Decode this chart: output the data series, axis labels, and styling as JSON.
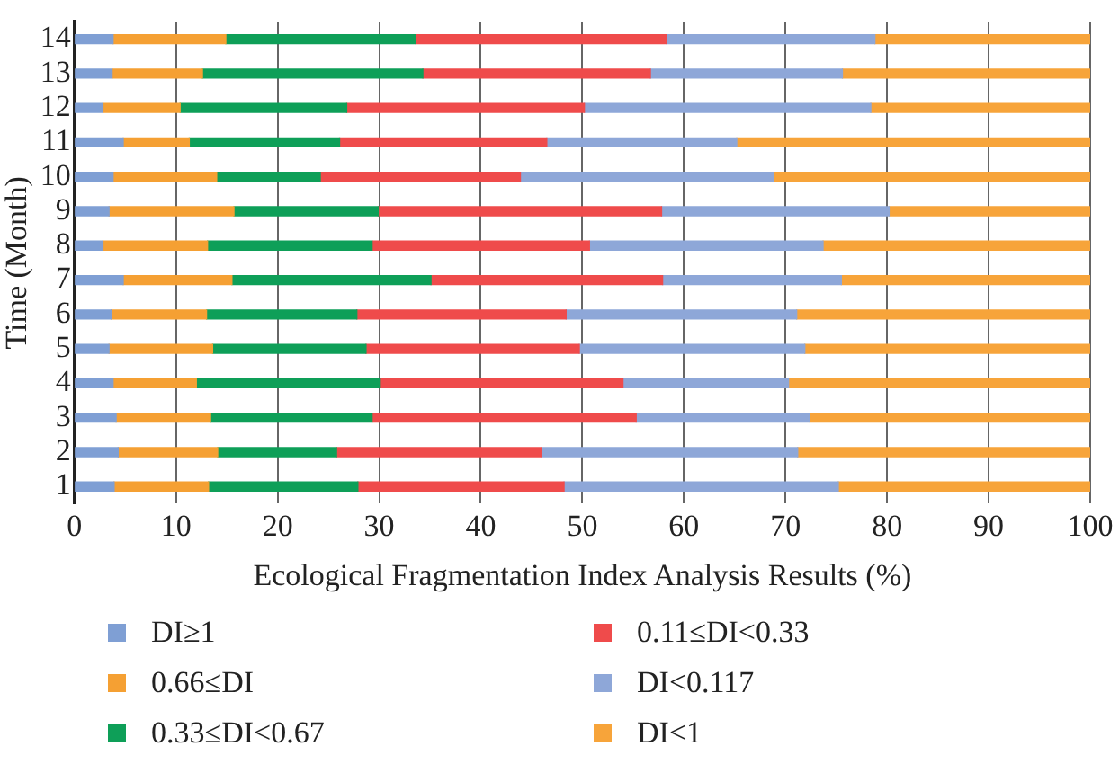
{
  "chart_data": {
    "type": "bar",
    "orientation": "horizontal",
    "stacked": true,
    "xlabel": "Ecological Fragmentation Index Analysis Results (%)",
    "ylabel": "Time (Month)",
    "categories": [
      "14",
      "13",
      "12",
      "11",
      "10",
      "9",
      "8",
      "7",
      "6",
      "5",
      "4",
      "3",
      "2",
      "1"
    ],
    "xlim": [
      0,
      100
    ],
    "xticks": [
      0,
      10,
      20,
      30,
      40,
      50,
      60,
      70,
      80,
      90,
      100
    ],
    "grid": "x",
    "legend": "bottom",
    "series": [
      {
        "name": "DI≥1",
        "color": "#7f9fd4",
        "values": [
          3.8,
          3.7,
          2.8,
          4.8,
          3.8,
          3.4,
          2.8,
          4.8,
          3.6,
          3.4,
          3.8,
          4.1,
          4.3,
          3.9
        ]
      },
      {
        "name": "0.66≤DI",
        "color": "#f5a033",
        "values": [
          11.1,
          8.9,
          7.6,
          6.5,
          10.2,
          12.3,
          10.3,
          10.7,
          9.4,
          10.2,
          8.2,
          9.3,
          9.8,
          9.3
        ]
      },
      {
        "name": "0.33≤DI<0.67",
        "color": "#0e9f58",
        "values": [
          18.7,
          21.7,
          16.4,
          14.8,
          10.2,
          14.2,
          16.2,
          19.6,
          14.8,
          15.1,
          18.1,
          15.9,
          11.7,
          14.7
        ]
      },
      {
        "name": "0.11≤DI<0.33",
        "color": "#ef4b4b",
        "values": [
          24.7,
          22.4,
          23.4,
          20.4,
          19.7,
          27.9,
          21.4,
          22.8,
          20.6,
          21.0,
          23.9,
          26.0,
          20.2,
          20.3
        ]
      },
      {
        "name": "DI<0.117",
        "color": "#8ea7d8",
        "values": [
          20.5,
          18.9,
          28.2,
          18.7,
          24.9,
          22.4,
          23.0,
          17.6,
          22.7,
          22.2,
          16.3,
          17.1,
          25.2,
          27.0
        ]
      },
      {
        "name": "DI<1",
        "color": "#f7a43a",
        "values": [
          21.2,
          24.4,
          21.6,
          34.8,
          31.2,
          19.8,
          26.3,
          24.5,
          28.9,
          28.1,
          29.7,
          27.6,
          28.8,
          24.8
        ]
      }
    ]
  }
}
